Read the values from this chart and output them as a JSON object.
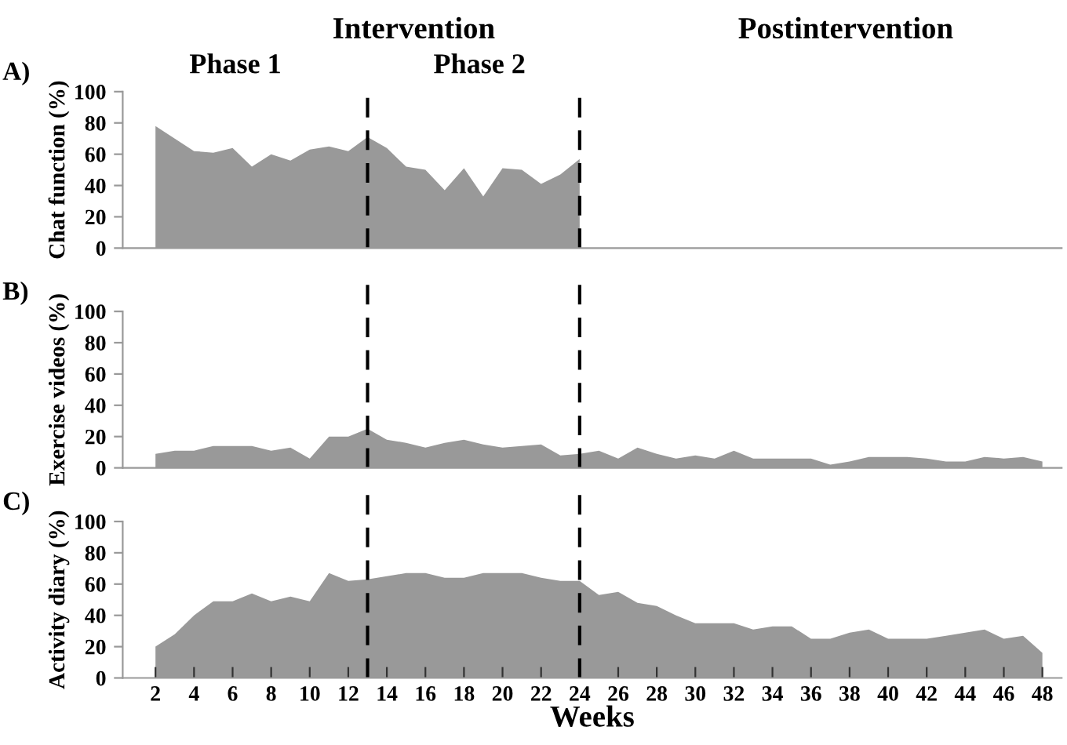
{
  "chart_data": [
    {
      "type": "area",
      "ylabel": "Chat function (%)",
      "color": "#999999",
      "annotations": [
        "A)",
        "Intervention",
        "Postintervention",
        "Phase 1",
        "Phase 2"
      ],
      "x": [
        2,
        3,
        4,
        5,
        6,
        7,
        8,
        9,
        10,
        11,
        12,
        13,
        14,
        15,
        16,
        17,
        18,
        19,
        20,
        21,
        22,
        23,
        24
      ],
      "values": [
        78,
        70,
        62,
        61,
        64,
        52,
        60,
        56,
        63,
        65,
        62,
        71,
        64,
        52,
        50,
        37,
        51,
        33,
        51,
        50,
        41,
        47,
        57
      ],
      "xlim": [
        0.3,
        49
      ],
      "ylim": [
        0,
        100
      ],
      "yticks": [
        0,
        20,
        40,
        60,
        80,
        100
      ],
      "xticks": [
        2,
        4,
        6,
        8,
        10,
        12,
        14,
        16,
        18,
        20,
        22,
        24,
        26,
        28,
        30,
        32,
        34,
        36,
        38,
        40,
        42,
        44,
        46,
        48
      ],
      "tick_labels": "y",
      "grid": false,
      "ref_lines": [
        {
          "axis": "x",
          "value": 13,
          "color": "#000000",
          "line_style": "dashed"
        },
        {
          "axis": "x",
          "value": 24,
          "color": "#000000",
          "line_style": "dashed"
        }
      ]
    },
    {
      "type": "area",
      "ylabel": "Exercise videos (%)",
      "color": "#999999",
      "annotations": [
        "B)"
      ],
      "x": [
        2,
        3,
        4,
        5,
        6,
        7,
        8,
        9,
        10,
        11,
        12,
        13,
        14,
        15,
        16,
        17,
        18,
        19,
        20,
        21,
        22,
        23,
        24,
        25,
        26,
        27,
        28,
        29,
        30,
        31,
        32,
        33,
        34,
        35,
        36,
        37,
        38,
        39,
        40,
        41,
        42,
        43,
        44,
        45,
        46,
        47,
        48
      ],
      "values": [
        9,
        11,
        11,
        14,
        14,
        14,
        11,
        13,
        6,
        20,
        20,
        25,
        18,
        16,
        13,
        16,
        18,
        15,
        13,
        14,
        15,
        8,
        9,
        11,
        6,
        13,
        9,
        6,
        8,
        6,
        11,
        6,
        6,
        6,
        6,
        2,
        4,
        7,
        7,
        7,
        6,
        4,
        4,
        7,
        6,
        7,
        4
      ],
      "xlim": [
        0.3,
        49
      ],
      "ylim": [
        0,
        100
      ],
      "yticks": [
        0,
        20,
        40,
        60,
        80,
        100
      ],
      "xticks": [
        2,
        4,
        6,
        8,
        10,
        12,
        14,
        16,
        18,
        20,
        22,
        24,
        26,
        28,
        30,
        32,
        34,
        36,
        38,
        40,
        42,
        44,
        46,
        48
      ],
      "tick_labels": "y",
      "grid": false,
      "ref_lines": [
        {
          "axis": "x",
          "value": 13,
          "color": "#000000",
          "line_style": "dashed"
        },
        {
          "axis": "x",
          "value": 24,
          "color": "#000000",
          "line_style": "dashed"
        }
      ]
    },
    {
      "type": "area",
      "ylabel": "Activity diary (%)",
      "xlabel": "Weeks",
      "color": "#999999",
      "annotations": [
        "C)"
      ],
      "x": [
        2,
        3,
        4,
        5,
        6,
        7,
        8,
        9,
        10,
        11,
        12,
        13,
        14,
        15,
        16,
        17,
        18,
        19,
        20,
        21,
        22,
        23,
        24,
        25,
        26,
        27,
        28,
        29,
        30,
        31,
        32,
        33,
        34,
        35,
        36,
        37,
        38,
        39,
        40,
        41,
        42,
        43,
        44,
        45,
        46,
        47,
        48
      ],
      "values": [
        20,
        28,
        40,
        49,
        49,
        54,
        49,
        52,
        49,
        67,
        62,
        63,
        65,
        67,
        67,
        64,
        64,
        67,
        67,
        67,
        64,
        62,
        62,
        53,
        55,
        48,
        46,
        40,
        35,
        35,
        35,
        31,
        33,
        33,
        25,
        25,
        29,
        31,
        25,
        25,
        25,
        27,
        29,
        31,
        25,
        27,
        16
      ],
      "xlim": [
        0.3,
        49
      ],
      "ylim": [
        0,
        100
      ],
      "yticks": [
        0,
        20,
        40,
        60,
        80,
        100
      ],
      "xticks": [
        2,
        4,
        6,
        8,
        10,
        12,
        14,
        16,
        18,
        20,
        22,
        24,
        26,
        28,
        30,
        32,
        34,
        36,
        38,
        40,
        42,
        44,
        46,
        48
      ],
      "grid": false,
      "ref_lines": [
        {
          "axis": "x",
          "value": 13,
          "color": "#000000",
          "line_style": "dashed"
        },
        {
          "axis": "x",
          "value": 24,
          "color": "#000000",
          "line_style": "dashed"
        }
      ]
    }
  ]
}
